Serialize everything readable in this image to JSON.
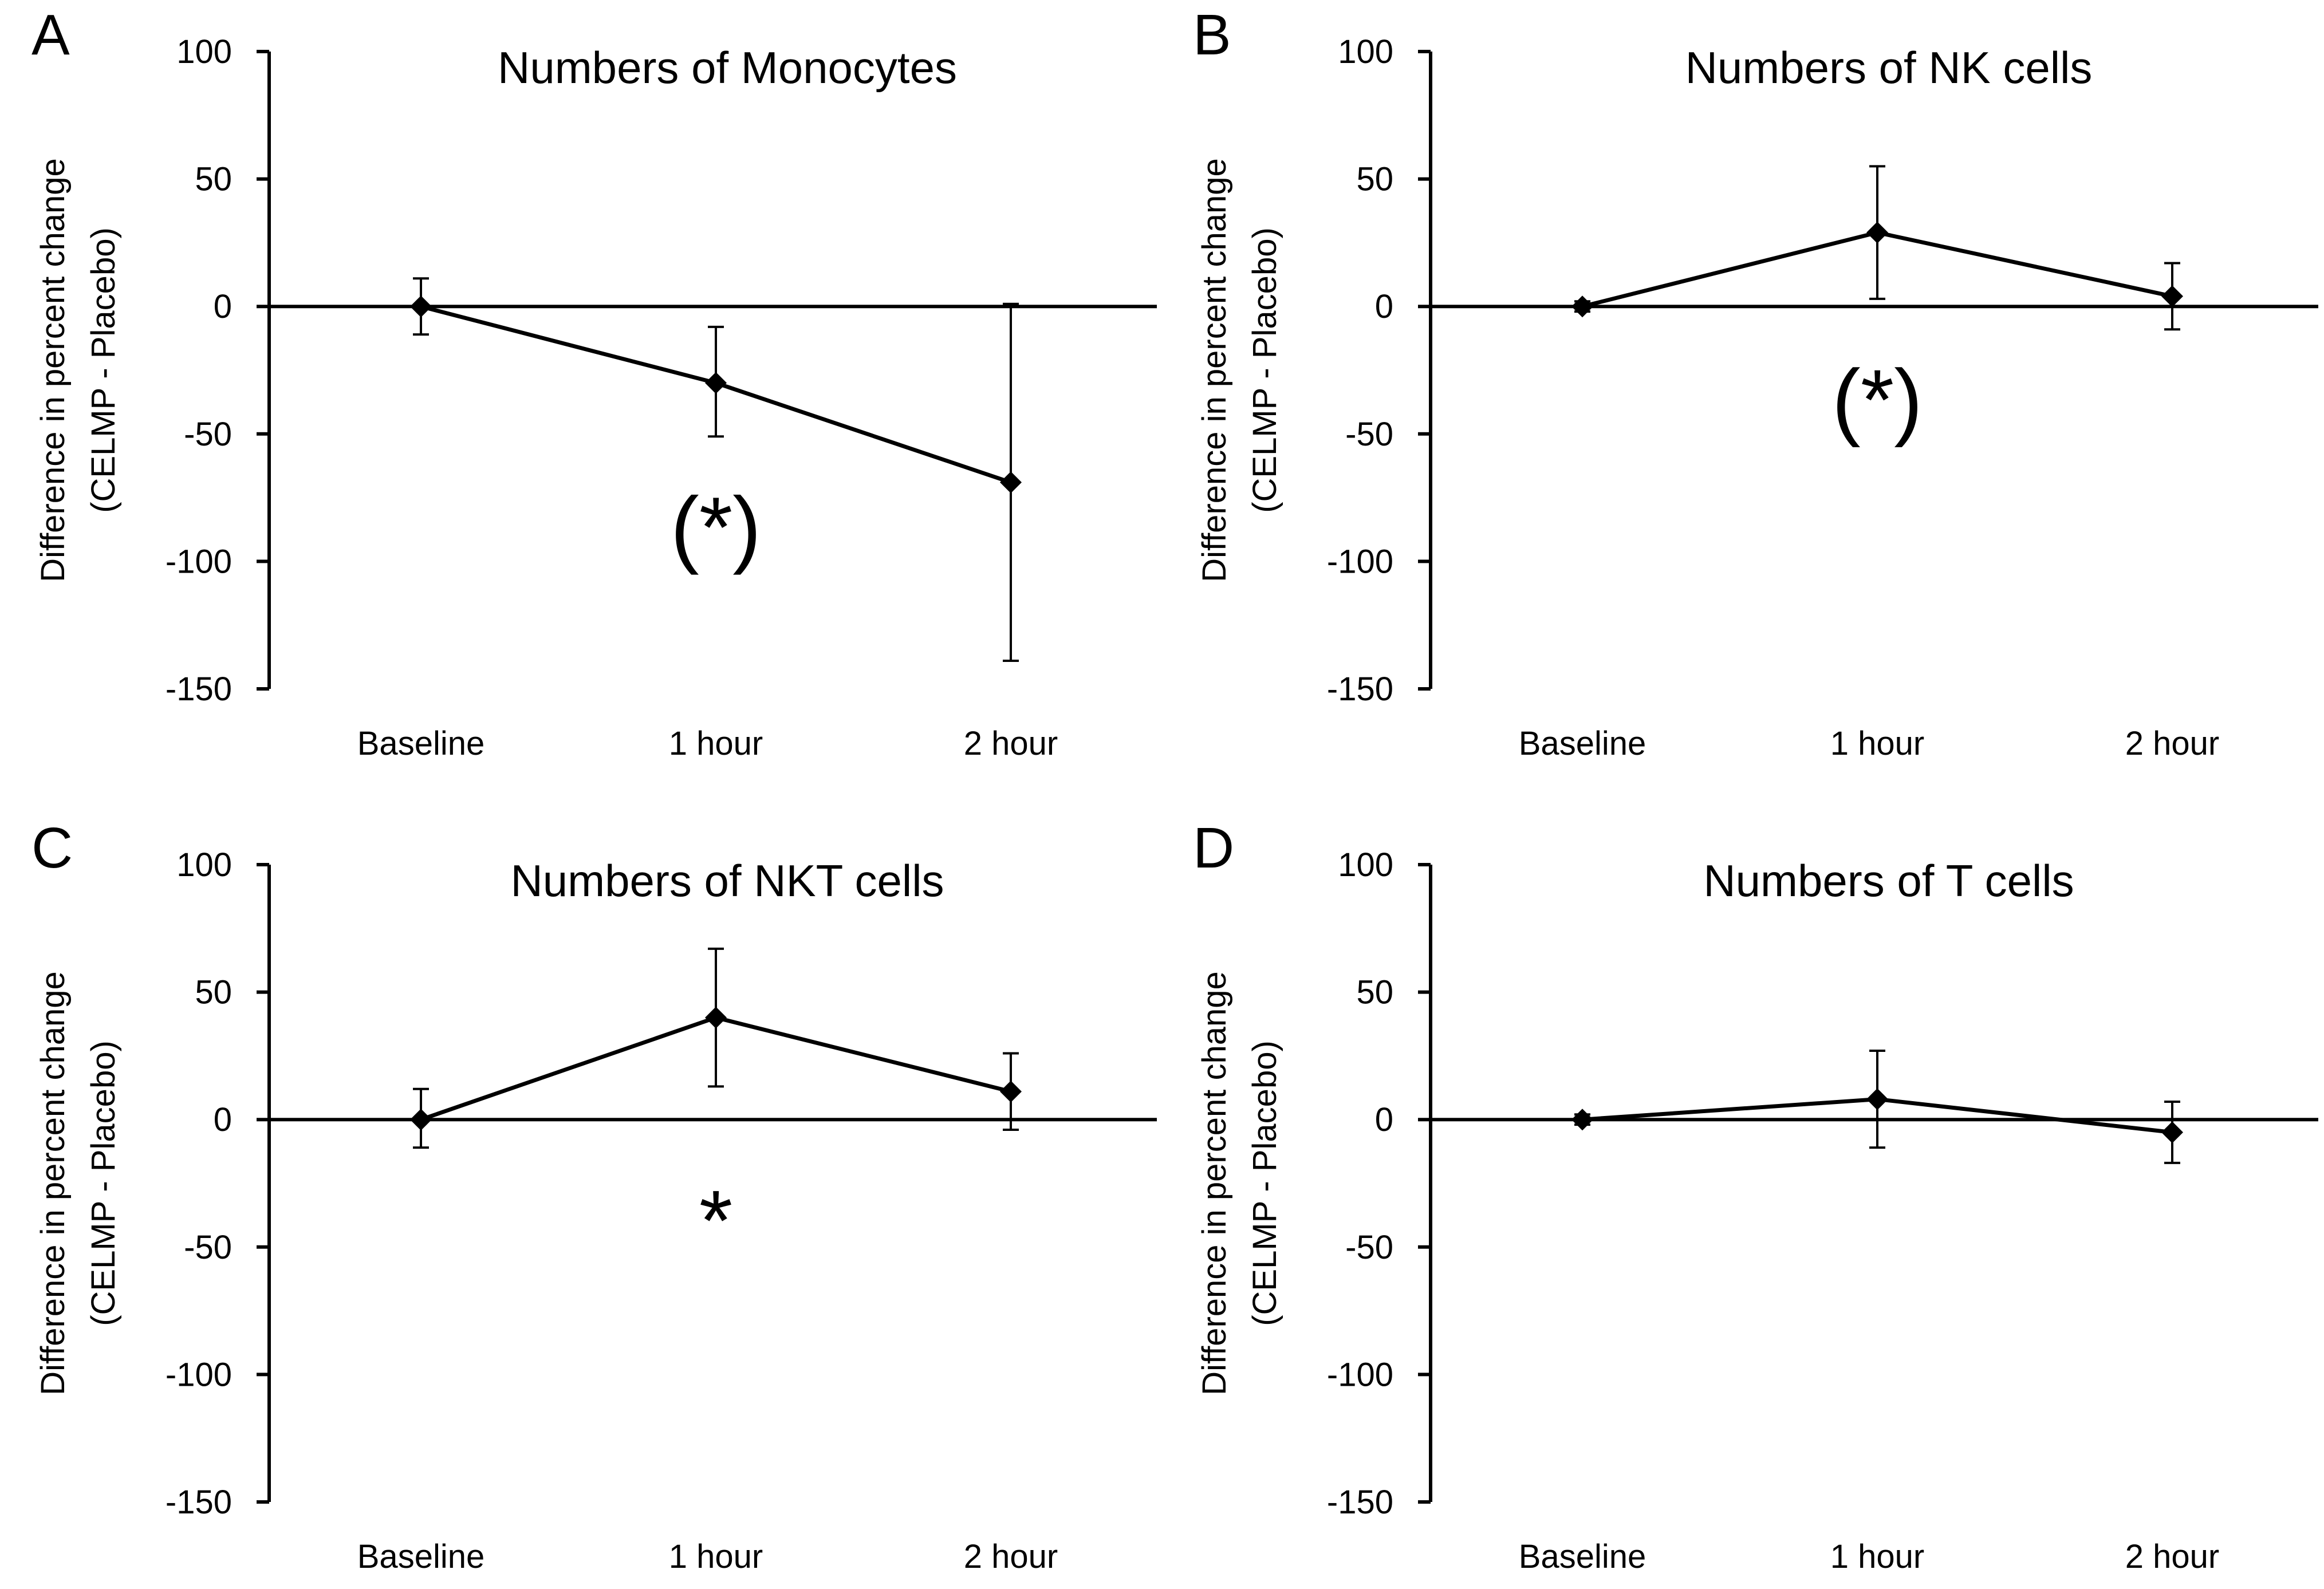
{
  "figure": {
    "ylabel_line1": "Difference in percent change",
    "ylabel_line2": "(CELMP - Placebo)"
  },
  "chart_data": [
    {
      "panel": "A",
      "type": "line",
      "title": "Numbers of Monocytes",
      "xlabel": "",
      "ylabel": "Difference in percent change (CELMP - Placebo)",
      "categories": [
        "Baseline",
        "1 hour",
        "2 hour"
      ],
      "values": [
        0,
        -30,
        -69
      ],
      "error_upper": [
        11,
        22,
        70
      ],
      "error_lower": [
        11,
        21,
        70
      ],
      "ylim": [
        -150,
        100
      ],
      "yticks": [
        100,
        50,
        0,
        -50,
        -100,
        -150
      ],
      "annotation": "(*)",
      "annotation_at": {
        "category_index": 1,
        "value": -87
      }
    },
    {
      "panel": "B",
      "type": "line",
      "title": "Numbers of NK cells",
      "xlabel": "",
      "ylabel": "Difference in percent change (CELMP - Placebo)",
      "categories": [
        "Baseline",
        "1 hour",
        "2 hour"
      ],
      "values": [
        0,
        29,
        4
      ],
      "error_upper": [
        2,
        26,
        13
      ],
      "error_lower": [
        2,
        26,
        13
      ],
      "ylim": [
        -150,
        100
      ],
      "yticks": [
        100,
        50,
        0,
        -50,
        -100,
        -150
      ],
      "annotation": "(*)",
      "annotation_at": {
        "category_index": 1,
        "value": -37
      }
    },
    {
      "panel": "C",
      "type": "line",
      "title": "Numbers of NKT cells",
      "xlabel": "",
      "ylabel": "Difference in percent change (CELMP - Placebo)",
      "categories": [
        "Baseline",
        "1 hour",
        "2 hour"
      ],
      "values": [
        0,
        40,
        11
      ],
      "error_upper": [
        12,
        27,
        15
      ],
      "error_lower": [
        11,
        27,
        15
      ],
      "ylim": [
        -150,
        100
      ],
      "yticks": [
        100,
        50,
        0,
        -50,
        -100,
        -150
      ],
      "annotation": "*",
      "annotation_at": {
        "category_index": 1,
        "value": -40
      }
    },
    {
      "panel": "D",
      "type": "line",
      "title": "Numbers of T cells",
      "xlabel": "",
      "ylabel": "Difference in percent change (CELMP - Placebo)",
      "categories": [
        "Baseline",
        "1 hour",
        "2 hour"
      ],
      "values": [
        0,
        8,
        -5
      ],
      "error_upper": [
        2,
        19,
        12
      ],
      "error_lower": [
        2,
        19,
        12
      ],
      "ylim": [
        -150,
        100
      ],
      "yticks": [
        100,
        50,
        0,
        -50,
        -100,
        -150
      ],
      "annotation": "",
      "annotation_at": null
    }
  ]
}
